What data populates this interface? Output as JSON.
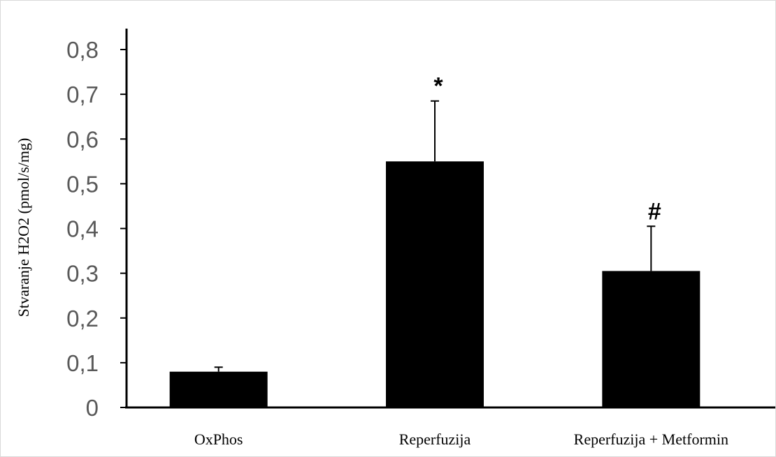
{
  "chart_data": {
    "type": "bar",
    "title": "",
    "xlabel": "",
    "ylabel": "Stvaranje H2O2 (pmol/s/mg)",
    "categories": [
      "OxPhos",
      "Reperfuzija",
      "Reperfuzija + Metformin"
    ],
    "values": [
      0.08,
      0.55,
      0.305
    ],
    "error_plus": [
      0.01,
      0.135,
      0.1
    ],
    "annotations": [
      "",
      "*",
      "#"
    ],
    "ylim": [
      0,
      0.8
    ],
    "yticks": [
      0,
      0.1,
      0.2,
      0.3,
      0.4,
      0.5,
      0.6,
      0.7,
      0.8
    ],
    "ytick_labels": [
      "0",
      "0,1",
      "0,2",
      "0,3",
      "0,4",
      "0,5",
      "0,6",
      "0,7",
      "0,8"
    ],
    "bar_color": "#000000",
    "grid": false,
    "legend": "none"
  }
}
